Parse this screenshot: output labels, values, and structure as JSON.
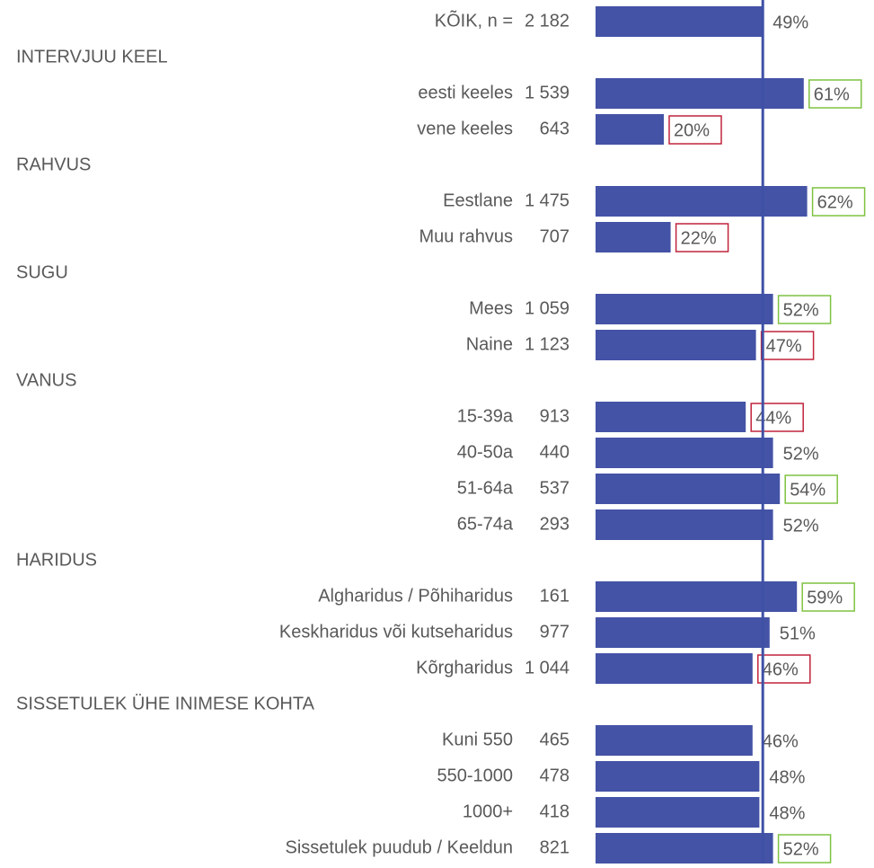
{
  "chart_data": {
    "type": "bar",
    "color": "#4453a6",
    "reference_color": "#3f51a5",
    "xlim": [
      0,
      100
    ],
    "total": {
      "category": "KÕIK, n =",
      "n": {
        "value": 2182,
        "label": "2 182"
      },
      "value": 49,
      "value_label": "49%",
      "box_color": null
    },
    "groups": [
      {
        "title": "INTERVJUU KEEL",
        "categories": [
          "eesti keeles",
          "vene keeles"
        ],
        "n": [
          {
            "value": 1539,
            "label": "1 539"
          },
          643
        ],
        "values": [
          61,
          20
        ],
        "value_labels": [
          "61%",
          "20%"
        ],
        "box_colors": [
          "#7fc241",
          "#c0243b"
        ]
      },
      {
        "title": "RAHVUS",
        "categories": [
          "Eestlane",
          "Muu rahvus"
        ],
        "n": [
          {
            "value": 1475,
            "label": "1 475"
          },
          707
        ],
        "values": [
          62,
          22
        ],
        "value_labels": [
          "62%",
          "22%"
        ],
        "box_colors": [
          "#7fc241",
          "#c0243b"
        ]
      },
      {
        "title": "SUGU",
        "categories": [
          "Mees",
          "Naine"
        ],
        "n": [
          {
            "value": 1059,
            "label": "1 059"
          },
          {
            "value": 1123,
            "label": "1 123"
          }
        ],
        "values": [
          52,
          47
        ],
        "value_labels": [
          "52%",
          "47%"
        ],
        "box_colors": [
          "#7fc241",
          "#c0243b"
        ]
      },
      {
        "title": "VANUS",
        "categories": [
          "15-39a",
          "40-50a",
          "51-64a",
          "65-74a"
        ],
        "n": [
          913,
          440,
          537,
          293
        ],
        "values": [
          44,
          52,
          54,
          52
        ],
        "value_labels": [
          "44%",
          "52%",
          "54%",
          "52%"
        ],
        "box_colors": [
          "#c0243b",
          null,
          "#7fc241",
          null
        ]
      },
      {
        "title": "HARIDUS",
        "categories": [
          "Algharidus / Põhiharidus",
          "Keskharidus või kutseharidus",
          "Kõrgharidus"
        ],
        "n": [
          161,
          977,
          {
            "value": 1044,
            "label": "1 044"
          }
        ],
        "values": [
          59,
          51,
          46
        ],
        "value_labels": [
          "59%",
          "51%",
          "46%"
        ],
        "box_colors": [
          "#7fc241",
          null,
          "#c0243b"
        ]
      },
      {
        "title": "SISSETULEK ÜHE INIMESE KOHTA",
        "categories": [
          "Kuni 550",
          "550-1000",
          "1000+",
          "Sissetulek puudub / Keeldun"
        ],
        "n": [
          465,
          478,
          418,
          821
        ],
        "values": [
          46,
          48,
          48,
          52
        ],
        "value_labels": [
          "46%",
          "48%",
          "48%",
          "52%"
        ],
        "box_colors": [
          null,
          null,
          null,
          "#7fc241"
        ]
      }
    ]
  }
}
